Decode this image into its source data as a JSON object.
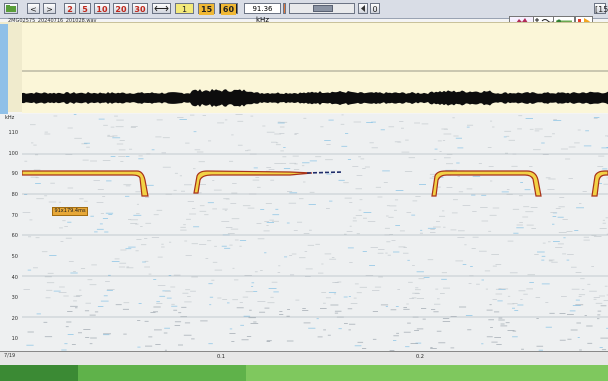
{
  "toolbar": {
    "open_icon": "folder-icon",
    "btn_prev": "<",
    "btn_next": ">",
    "time_buttons": [
      "2",
      "5",
      "10",
      "20",
      "30"
    ],
    "fit_icon": "expand-arrows-icon",
    "btn_one": "1",
    "btn_fifteen": "15",
    "btn_sixty": "60",
    "freq_readout": "91.36 kHz",
    "counter": "0",
    "right_counter": "[15]"
  },
  "file": {
    "name": "2MG02575_20240716_201028.wav"
  },
  "spectrogram": {
    "unit_label": "kHz",
    "y_ticks": [
      "110",
      "100",
      "90",
      "80",
      "70",
      "60",
      "50",
      "40",
      "30",
      "20",
      "10"
    ],
    "measure_label": "91x179.4ms"
  },
  "time_axis": {
    "x_ticks": [
      "0.1",
      "0.2"
    ],
    "page_label": "7/19"
  },
  "colors": {
    "toolbar_bg": "#d9dde6",
    "waveform_bg": "#fbf6d8",
    "waveform": "#0d0d0d",
    "call_outline": "#a8321a",
    "call_fill": "#f2d245",
    "noise_blue": "#5aaee0",
    "scroll_green": "#6fbf4f"
  }
}
